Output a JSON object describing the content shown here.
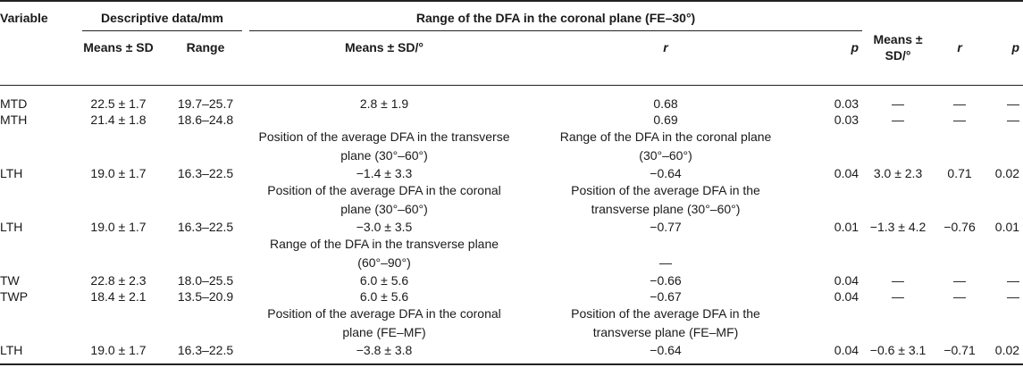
{
  "header": {
    "variable": "Variable",
    "descriptive": "Descriptive data/mm",
    "range_group": "Range of the DFA in the coronal plane (FE–30°)",
    "means_sd": "Means ± SD",
    "range": "Range",
    "means_sd_deg": "Means ± SD/°",
    "r": "r",
    "p": "p",
    "means_sd_deg2": "Means ± SD/°",
    "r2": "r",
    "p2": "p"
  },
  "rows": [
    {
      "v": "MTD",
      "m": "22.5 ± 1.7",
      "rg": "19.7–25.7",
      "a": "2.8 ± 1.9",
      "b": "0.68",
      "c": "0.03",
      "d": "—",
      "e": "—",
      "f": "—"
    },
    {
      "v": "MTH",
      "m": "21.4 ± 1.8",
      "rg": "18.6–24.8",
      "a": "",
      "b": "0.69",
      "c": "0.03",
      "d": "—",
      "e": "—",
      "f": "—"
    },
    {
      "v": "LTH",
      "m": "19.0 ± 1.7",
      "rg": "16.3–22.5",
      "a": "−1.4 ± 3.3",
      "b": "−0.64",
      "c": "0.04",
      "d": "3.0 ± 2.3",
      "e": "0.71",
      "f": "0.02"
    },
    {
      "v": "LTH",
      "m": "19.0 ± 1.7",
      "rg": "16.3–22.5",
      "a": "−3.0 ± 3.5",
      "b": "−0.77",
      "c": "0.01",
      "d": "−1.3 ± 4.2",
      "e": "−0.76",
      "f": "0.01"
    },
    {
      "v": "TW",
      "m": "22.8 ± 2.3",
      "rg": "18.0–25.5",
      "a": "6.0 ± 5.6",
      "b": "−0.66",
      "c": "0.04",
      "d": "—",
      "e": "—",
      "f": "—"
    },
    {
      "v": "TWP",
      "m": "18.4 ± 2.1",
      "rg": "13.5–20.9",
      "a": "6.0 ± 5.6",
      "b": "−0.67",
      "c": "0.04",
      "d": "—",
      "e": "—",
      "f": "—"
    },
    {
      "v": "LTH",
      "m": "19.0 ± 1.7",
      "rg": "16.3–22.5",
      "a": "−3.8 ± 3.8",
      "b": "−0.64",
      "c": "0.04",
      "d": "−0.6 ± 3.1",
      "e": "−0.71",
      "f": "0.02"
    }
  ],
  "sections": {
    "s1_a": "Position of the average DFA in the transverse plane (30°–60°)",
    "s1_b": "Range of the DFA in the coronal plane (30°–60°)",
    "s2_a": "Position of the average DFA in the coronal plane (30°–60°)",
    "s2_b": "Position of the average DFA in the transverse plane (30°–60°)",
    "s3_a": "Range of the DFA in the transverse plane (60°–90°)",
    "s3_b": "—",
    "s4_a": "Position of the average DFA in the coronal plane (FE–MF)",
    "s4_b": "Position of the average DFA in the transverse plane (FE–MF)"
  }
}
